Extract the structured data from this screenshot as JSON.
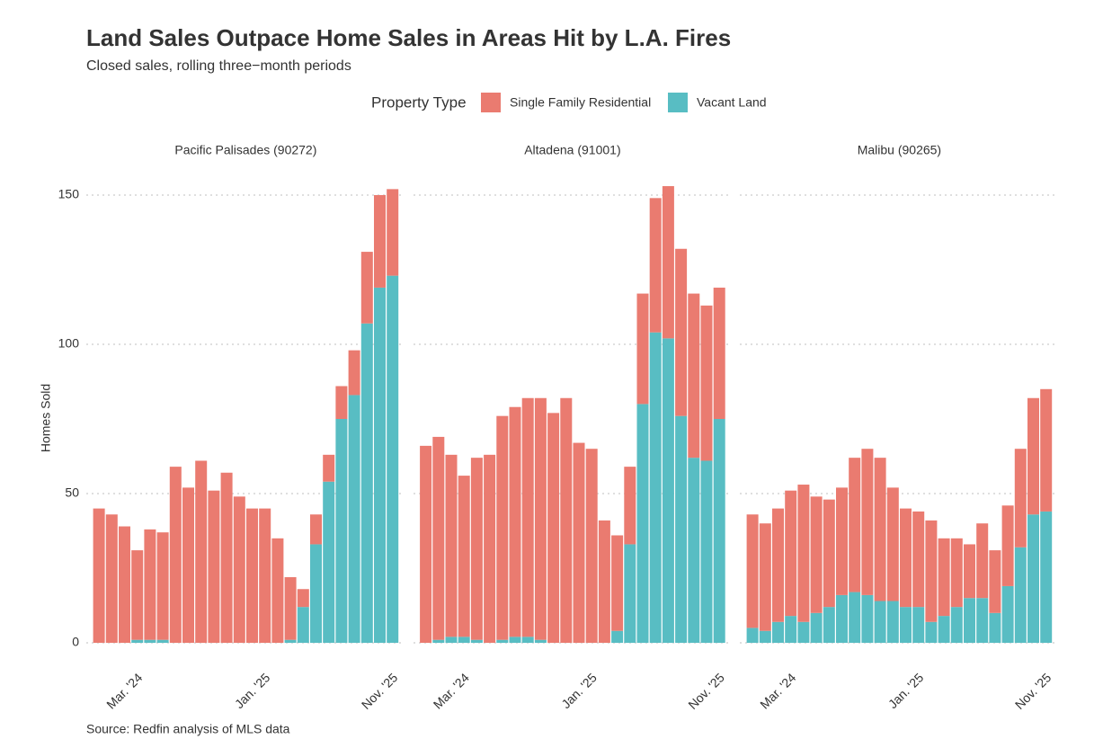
{
  "chart_data": {
    "type": "bar",
    "stacked": true,
    "title": "Land Sales Outpace Home Sales in Areas Hit by L.A. Fires",
    "subtitle": "Closed sales, rolling three−month periods",
    "caption": "Source: Redfin analysis of MLS data",
    "ylabel": "Homes Sold",
    "legend_title": "Property Type",
    "legend_position": "top",
    "grid": true,
    "ylim": [
      0,
      155
    ],
    "yticks": [
      0,
      50,
      100,
      150
    ],
    "categories": [
      null,
      null,
      null,
      "Mar. '24",
      null,
      null,
      null,
      null,
      null,
      null,
      null,
      null,
      null,
      "Jan. '25",
      null,
      null,
      null,
      null,
      null,
      null,
      null,
      null,
      null,
      "Nov. '25"
    ],
    "series": [
      {
        "name": "Single Family Residential",
        "color": "#EA7B70"
      },
      {
        "name": "Vacant Land",
        "color": "#58BDC3"
      }
    ],
    "facets": [
      {
        "title": "Pacific Palisades (90272)",
        "series": [
          {
            "values": [
              45,
              43,
              39,
              30,
              37,
              36,
              59,
              52,
              61,
              51,
              57,
              49,
              45,
              45,
              35,
              21,
              6,
              10,
              9,
              11,
              15,
              24,
              31,
              29
            ]
          },
          {
            "values": [
              0,
              0,
              0,
              1,
              1,
              1,
              0,
              0,
              0,
              0,
              0,
              0,
              0,
              0,
              0,
              1,
              12,
              33,
              54,
              75,
              83,
              107,
              119,
              123
            ]
          }
        ]
      },
      {
        "title": "Altadena (91001)",
        "series": [
          {
            "values": [
              66,
              68,
              61,
              54,
              61,
              63,
              75,
              77,
              80,
              81,
              77,
              82,
              67,
              65,
              41,
              32,
              26,
              37,
              45,
              51,
              56,
              55,
              52,
              44
            ]
          },
          {
            "values": [
              0,
              1,
              2,
              2,
              1,
              0,
              1,
              2,
              2,
              1,
              0,
              0,
              0,
              0,
              0,
              4,
              33,
              80,
              104,
              102,
              76,
              62,
              61,
              75
            ]
          }
        ]
      },
      {
        "title": "Malibu (90265)",
        "series": [
          {
            "values": [
              38,
              36,
              38,
              42,
              46,
              39,
              36,
              36,
              45,
              49,
              48,
              38,
              33,
              32,
              34,
              26,
              23,
              18,
              25,
              21,
              27,
              33,
              39,
              41
            ]
          },
          {
            "values": [
              5,
              4,
              7,
              9,
              7,
              10,
              12,
              16,
              17,
              16,
              14,
              14,
              12,
              12,
              7,
              9,
              12,
              15,
              15,
              10,
              19,
              32,
              43,
              44
            ]
          }
        ]
      }
    ]
  }
}
